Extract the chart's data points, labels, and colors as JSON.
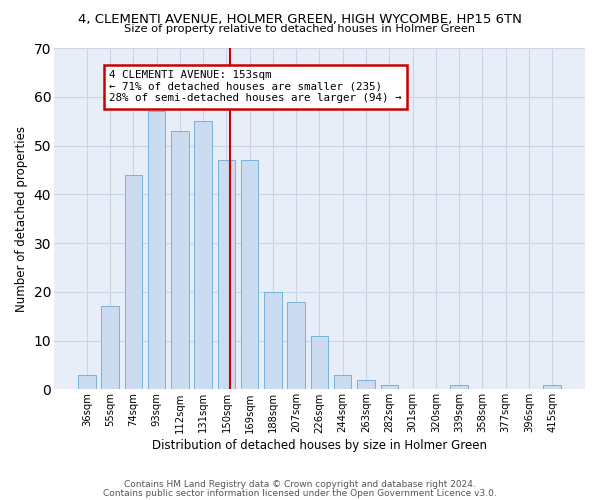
{
  "title": "4, CLEMENTI AVENUE, HOLMER GREEN, HIGH WYCOMBE, HP15 6TN",
  "subtitle": "Size of property relative to detached houses in Holmer Green",
  "xlabel": "Distribution of detached houses by size in Holmer Green",
  "ylabel": "Number of detached properties",
  "categories": [
    "36sqm",
    "55sqm",
    "74sqm",
    "93sqm",
    "112sqm",
    "131sqm",
    "150sqm",
    "169sqm",
    "188sqm",
    "207sqm",
    "226sqm",
    "244sqm",
    "263sqm",
    "282sqm",
    "301sqm",
    "320sqm",
    "339sqm",
    "358sqm",
    "377sqm",
    "396sqm",
    "415sqm"
  ],
  "values": [
    3,
    17,
    44,
    57,
    53,
    55,
    47,
    47,
    20,
    18,
    11,
    3,
    2,
    1,
    0,
    0,
    1,
    0,
    0,
    0,
    1
  ],
  "bar_color": "#ccdcf0",
  "bar_edge_color": "#6aaad4",
  "grid_color": "#c8d4e8",
  "background_color": "#e8eef8",
  "vline_color": "#cc0000",
  "annotation_text": "4 CLEMENTI AVENUE: 153sqm\n← 71% of detached houses are smaller (235)\n28% of semi-detached houses are larger (94) →",
  "annotation_box_color": "#ffffff",
  "annotation_box_edge": "#cc0000",
  "ylim": [
    0,
    70
  ],
  "yticks": [
    0,
    10,
    20,
    30,
    40,
    50,
    60,
    70
  ],
  "footer1": "Contains HM Land Registry data © Crown copyright and database right 2024.",
  "footer2": "Contains public sector information licensed under the Open Government Licence v3.0."
}
